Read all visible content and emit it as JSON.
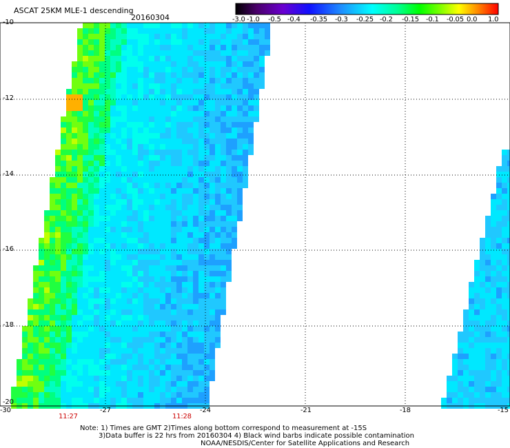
{
  "header": {
    "title": "ASCAT 25KM MLE-1 descending",
    "date": "20160304"
  },
  "colorbar": {
    "labels": [
      "-3.0",
      "-1.0",
      "-0.5",
      "-0.4",
      "-0.35",
      "-0.3",
      "-0.25",
      "-0.2",
      "-0.15",
      "-0.1",
      "-0.05",
      "0.0",
      "1.0"
    ]
  },
  "axes": {
    "y_labels": [
      "-10",
      "-12",
      "-14",
      "-16",
      "-18",
      "-20"
    ],
    "x_labels": [
      "-30",
      "-27",
      "-24",
      "-21",
      "-18",
      "-15"
    ],
    "times": [
      "11:27",
      "11:28"
    ]
  },
  "notes": {
    "line1": "Note: 1) Times are GMT 2)Times along bottom correspond to measurement at -15S",
    "line2": "3)Data buffer is 22 hrs from 20160304 4) Black wind barbs indicate possible contamination",
    "line3": "NOAA/NESDIS/Center for Satellite Applications and Research"
  },
  "colors": {
    "grid": "#000000",
    "time_label": "#cc0000"
  }
}
